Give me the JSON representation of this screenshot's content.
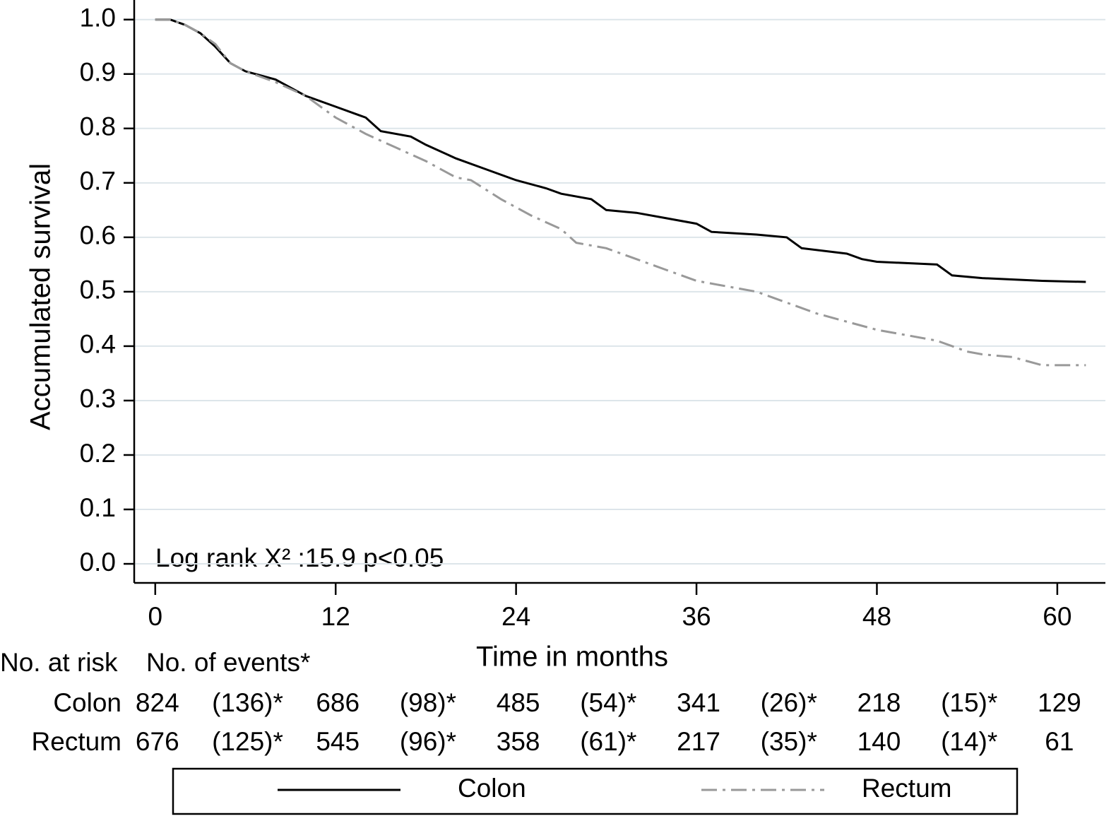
{
  "chart_data": {
    "type": "line",
    "y_label": "Accumulated survival",
    "x_label": "Time in months",
    "annotation": "Log rank X² :15.9  p<0.05",
    "xlim": [
      -1.4,
      63.2
    ],
    "ylim": [
      -0.035,
      1.036
    ],
    "xticks": [
      0,
      12,
      24,
      36,
      48,
      60
    ],
    "yticks": [
      {
        "value": 0,
        "label": "0.0"
      },
      0.1,
      0.2,
      0.3,
      0.4,
      0.5,
      0.6,
      0.7,
      0.8,
      0.9,
      {
        "value": 1,
        "label": "1.0"
      }
    ],
    "grid": true,
    "series": [
      {
        "name": "Colon",
        "color": "#000000",
        "dash": "solid",
        "x": [
          0,
          1,
          2,
          3,
          4,
          5,
          6,
          8,
          10,
          12,
          14,
          15,
          17,
          18,
          20,
          22,
          24,
          26,
          27,
          29,
          30,
          32,
          34,
          36,
          37,
          40,
          42,
          43,
          46,
          47,
          48,
          52,
          53,
          55,
          59,
          61.9
        ],
        "values": [
          1.0,
          1.0,
          0.99,
          0.975,
          0.95,
          0.92,
          0.905,
          0.89,
          0.86,
          0.84,
          0.82,
          0.795,
          0.785,
          0.77,
          0.745,
          0.725,
          0.705,
          0.69,
          0.68,
          0.67,
          0.65,
          0.645,
          0.635,
          0.625,
          0.61,
          0.605,
          0.6,
          0.58,
          0.57,
          0.56,
          0.555,
          0.55,
          0.53,
          0.525,
          0.52,
          0.518
        ]
      },
      {
        "name": "Rectum",
        "color": "#999999",
        "dash": "dashdot",
        "x": [
          0,
          1,
          2,
          3,
          4,
          5,
          6,
          8,
          10,
          12,
          14,
          16,
          18,
          20,
          21,
          23,
          25,
          27,
          28,
          30,
          32,
          34,
          36,
          38,
          40,
          42,
          44,
          46,
          48,
          50,
          52,
          54,
          55,
          57,
          59,
          61.9
        ],
        "values": [
          1.0,
          1.0,
          0.99,
          0.975,
          0.955,
          0.92,
          0.905,
          0.885,
          0.86,
          0.82,
          0.79,
          0.765,
          0.74,
          0.71,
          0.705,
          0.67,
          0.64,
          0.615,
          0.59,
          0.58,
          0.56,
          0.54,
          0.52,
          0.51,
          0.5,
          0.48,
          0.46,
          0.445,
          0.43,
          0.42,
          0.41,
          0.39,
          0.385,
          0.38,
          0.365,
          0.365
        ]
      }
    ],
    "risk_table": {
      "header": [
        "No. at risk",
        "No. of events*"
      ],
      "rows": [
        {
          "label": "Colon",
          "cells": [
            "824",
            "(136)*",
            "686",
            "(98)*",
            "485",
            "(54)*",
            "341",
            "(26)*",
            "218",
            "(15)*",
            "129"
          ]
        },
        {
          "label": "Rectum",
          "cells": [
            "676",
            "(125)*",
            "545",
            "(96)*",
            "358",
            "(61)*",
            "217",
            "(35)*",
            "140",
            "(14)*",
            "61"
          ]
        }
      ]
    }
  }
}
